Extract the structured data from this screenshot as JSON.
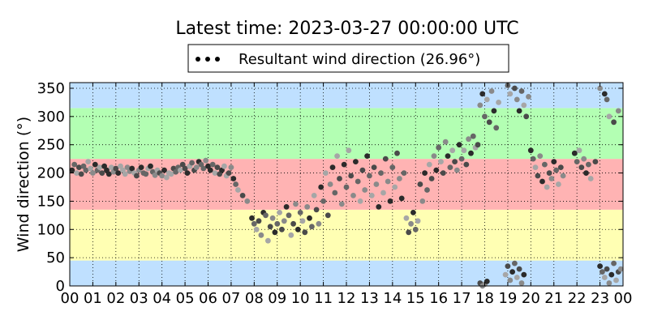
{
  "chart_data": {
    "type": "scatter",
    "title": "Latest time: 2023-03-27 00:00:00 UTC",
    "xlabel": "",
    "ylabel": "Wind direction (°)",
    "xlim": [
      0,
      24
    ],
    "ylim": [
      0,
      360
    ],
    "x_ticks": [
      "00",
      "01",
      "02",
      "03",
      "04",
      "05",
      "06",
      "07",
      "08",
      "09",
      "10",
      "11",
      "12",
      "13",
      "14",
      "15",
      "16",
      "17",
      "18",
      "19",
      "20",
      "21",
      "22",
      "23",
      "00"
    ],
    "y_ticks": [
      0,
      50,
      100,
      150,
      200,
      250,
      300,
      350
    ],
    "grid": true,
    "legend": {
      "placement": "top-center",
      "entries": [
        "Resultant wind direction (26.96°)"
      ]
    },
    "bands": [
      {
        "from": 0,
        "to": 45,
        "color": "#bfe0ff"
      },
      {
        "from": 45,
        "to": 135,
        "color": "#ffffb3"
      },
      {
        "from": 135,
        "to": 225,
        "color": "#ffb3b3"
      },
      {
        "from": 225,
        "to": 315,
        "color": "#b3ffb3"
      },
      {
        "from": 315,
        "to": 360,
        "color": "#bfe0ff"
      }
    ],
    "series": [
      {
        "name": "Resultant wind direction (26.96°)",
        "points": [
          [
            0.1,
            205
          ],
          [
            0.2,
            215
          ],
          [
            0.3,
            200
          ],
          [
            0.4,
            210
          ],
          [
            0.5,
            198
          ],
          [
            0.6,
            212
          ],
          [
            0.7,
            205
          ],
          [
            0.8,
            220
          ],
          [
            0.9,
            208
          ],
          [
            1.0,
            200
          ],
          [
            1.1,
            215
          ],
          [
            1.2,
            205
          ],
          [
            1.3,
            210
          ],
          [
            1.4,
            200
          ],
          [
            1.5,
            212
          ],
          [
            1.6,
            205
          ],
          [
            1.7,
            198
          ],
          [
            1.8,
            210
          ],
          [
            1.9,
            202
          ],
          [
            2.0,
            208
          ],
          [
            2.1,
            200
          ],
          [
            2.2,
            212
          ],
          [
            2.3,
            205
          ],
          [
            2.4,
            198
          ],
          [
            2.5,
            210
          ],
          [
            2.6,
            203
          ],
          [
            2.7,
            208
          ],
          [
            2.8,
            200
          ],
          [
            2.9,
            195
          ],
          [
            3.0,
            205
          ],
          [
            3.1,
            210
          ],
          [
            3.2,
            200
          ],
          [
            3.3,
            198
          ],
          [
            3.4,
            208
          ],
          [
            3.5,
            212
          ],
          [
            3.6,
            202
          ],
          [
            3.7,
            196
          ],
          [
            3.8,
            205
          ],
          [
            3.9,
            200
          ],
          [
            4.0,
            195
          ],
          [
            4.1,
            205
          ],
          [
            4.2,
            192
          ],
          [
            4.3,
            200
          ],
          [
            4.4,
            198
          ],
          [
            4.5,
            208
          ],
          [
            4.6,
            202
          ],
          [
            4.7,
            210
          ],
          [
            4.8,
            205
          ],
          [
            4.9,
            215
          ],
          [
            5.0,
            208
          ],
          [
            5.1,
            200
          ],
          [
            5.2,
            212
          ],
          [
            5.3,
            218
          ],
          [
            5.4,
            205
          ],
          [
            5.5,
            210
          ],
          [
            5.6,
            220
          ],
          [
            5.7,
            215
          ],
          [
            5.8,
            208
          ],
          [
            5.9,
            222
          ],
          [
            6.0,
            212
          ],
          [
            6.1,
            205
          ],
          [
            6.2,
            215
          ],
          [
            6.3,
            200
          ],
          [
            6.4,
            210
          ],
          [
            6.5,
            198
          ],
          [
            6.6,
            205
          ],
          [
            6.7,
            212
          ],
          [
            6.8,
            195
          ],
          [
            6.9,
            200
          ],
          [
            7.0,
            210
          ],
          [
            7.1,
            190
          ],
          [
            7.2,
            180
          ],
          [
            7.3,
            170
          ],
          [
            7.5,
            160
          ],
          [
            7.7,
            150
          ],
          [
            7.9,
            120
          ],
          [
            8.0,
            110
          ],
          [
            8.1,
            100
          ],
          [
            8.2,
            115
          ],
          [
            8.3,
            90
          ],
          [
            8.4,
            130
          ],
          [
            8.5,
            125
          ],
          [
            8.6,
            80
          ],
          [
            8.7,
            105
          ],
          [
            8.8,
            120
          ],
          [
            8.9,
            95
          ],
          [
            9.0,
            110
          ],
          [
            9.1,
            130
          ],
          [
            9.2,
            100
          ],
          [
            9.3,
            115
          ],
          [
            9.4,
            140
          ],
          [
            9.5,
            125
          ],
          [
            9.6,
            90
          ],
          [
            9.7,
            110
          ],
          [
            9.8,
            145
          ],
          [
            9.9,
            100
          ],
          [
            10.0,
            130
          ],
          [
            10.1,
            115
          ],
          [
            10.2,
            95
          ],
          [
            10.3,
            140
          ],
          [
            10.4,
            120
          ],
          [
            10.5,
            105
          ],
          [
            10.6,
            160
          ],
          [
            10.7,
            135
          ],
          [
            10.8,
            110
          ],
          [
            10.9,
            175
          ],
          [
            11.0,
            150
          ],
          [
            11.1,
            200
          ],
          [
            11.2,
            125
          ],
          [
            11.3,
            180
          ],
          [
            11.4,
            210
          ],
          [
            11.5,
            165
          ],
          [
            11.6,
            230
          ],
          [
            11.7,
            190
          ],
          [
            11.8,
            145
          ],
          [
            11.9,
            215
          ],
          [
            12.0,
            175
          ],
          [
            12.1,
            240
          ],
          [
            12.2,
            195
          ],
          [
            12.3,
            160
          ],
          [
            12.4,
            220
          ],
          [
            12.5,
            185
          ],
          [
            12.6,
            150
          ],
          [
            12.7,
            205
          ],
          [
            12.8,
            170
          ],
          [
            12.9,
            230
          ],
          [
            13.0,
            195
          ],
          [
            13.1,
            160
          ],
          [
            13.2,
            210
          ],
          [
            13.3,
            180
          ],
          [
            13.4,
            140
          ],
          [
            13.5,
            200
          ],
          [
            13.6,
            165
          ],
          [
            13.7,
            225
          ],
          [
            13.8,
            185
          ],
          [
            13.9,
            150
          ],
          [
            14.0,
            210
          ],
          [
            14.1,
            175
          ],
          [
            14.2,
            235
          ],
          [
            14.3,
            190
          ],
          [
            14.4,
            155
          ],
          [
            14.5,
            200
          ],
          [
            14.6,
            120
          ],
          [
            14.7,
            95
          ],
          [
            14.8,
            110
          ],
          [
            14.9,
            130
          ],
          [
            15.0,
            100
          ],
          [
            15.1,
            115
          ],
          [
            15.2,
            180
          ],
          [
            15.3,
            150
          ],
          [
            15.4,
            200
          ],
          [
            15.5,
            170
          ],
          [
            15.6,
            215
          ],
          [
            15.7,
            190
          ],
          [
            15.8,
            230
          ],
          [
            15.9,
            205
          ],
          [
            16.0,
            245
          ],
          [
            16.1,
            220
          ],
          [
            16.2,
            200
          ],
          [
            16.3,
            255
          ],
          [
            16.4,
            230
          ],
          [
            16.5,
            210
          ],
          [
            16.6,
            240
          ],
          [
            16.7,
            220
          ],
          [
            16.8,
            205
          ],
          [
            16.9,
            250
          ],
          [
            17.0,
            225
          ],
          [
            17.1,
            240
          ],
          [
            17.2,
            215
          ],
          [
            17.3,
            260
          ],
          [
            17.4,
            235
          ],
          [
            17.5,
            265
          ],
          [
            17.6,
            245
          ],
          [
            17.7,
            250
          ],
          [
            17.8,
            320
          ],
          [
            17.9,
            340
          ],
          [
            18.0,
            300
          ],
          [
            18.1,
            330
          ],
          [
            18.2,
            290
          ],
          [
            18.3,
            345
          ],
          [
            18.4,
            310
          ],
          [
            18.5,
            280
          ],
          [
            18.6,
            325
          ],
          [
            17.8,
            5
          ],
          [
            17.9,
            0
          ],
          [
            18.0,
            3
          ],
          [
            18.1,
            8
          ],
          [
            18.9,
            20
          ],
          [
            19.0,
            35
          ],
          [
            19.1,
            10
          ],
          [
            19.2,
            25
          ],
          [
            19.3,
            40
          ],
          [
            19.4,
            15
          ],
          [
            19.5,
            30
          ],
          [
            19.6,
            5
          ],
          [
            19.7,
            20
          ],
          [
            19.0,
            355
          ],
          [
            19.1,
            340
          ],
          [
            19.3,
            350
          ],
          [
            19.4,
            330
          ],
          [
            19.5,
            310
          ],
          [
            19.6,
            345
          ],
          [
            19.7,
            320
          ],
          [
            19.8,
            300
          ],
          [
            19.9,
            335
          ],
          [
            20.0,
            240
          ],
          [
            20.1,
            225
          ],
          [
            20.2,
            210
          ],
          [
            20.3,
            195
          ],
          [
            20.4,
            230
          ],
          [
            20.5,
            185
          ],
          [
            20.6,
            215
          ],
          [
            20.7,
            175
          ],
          [
            20.8,
            200
          ],
          [
            20.9,
            190
          ],
          [
            21.0,
            220
          ],
          [
            21.1,
            205
          ],
          [
            21.2,
            180
          ],
          [
            21.3,
            210
          ],
          [
            21.4,
            195
          ],
          [
            21.9,
            235
          ],
          [
            22.0,
            220
          ],
          [
            22.1,
            240
          ],
          [
            22.2,
            210
          ],
          [
            22.3,
            225
          ],
          [
            22.4,
            200
          ],
          [
            22.5,
            215
          ],
          [
            22.6,
            190
          ],
          [
            22.8,
            220
          ],
          [
            23.0,
            350
          ],
          [
            23.2,
            340
          ],
          [
            23.3,
            330
          ],
          [
            23.4,
            300
          ],
          [
            23.6,
            290
          ],
          [
            23.8,
            310
          ],
          [
            23.0,
            35
          ],
          [
            23.1,
            25
          ],
          [
            23.2,
            15
          ],
          [
            23.3,
            30
          ],
          [
            23.4,
            5
          ],
          [
            23.5,
            20
          ],
          [
            23.6,
            40
          ],
          [
            23.7,
            10
          ],
          [
            23.8,
            25
          ],
          [
            23.9,
            30
          ]
        ]
      }
    ]
  }
}
